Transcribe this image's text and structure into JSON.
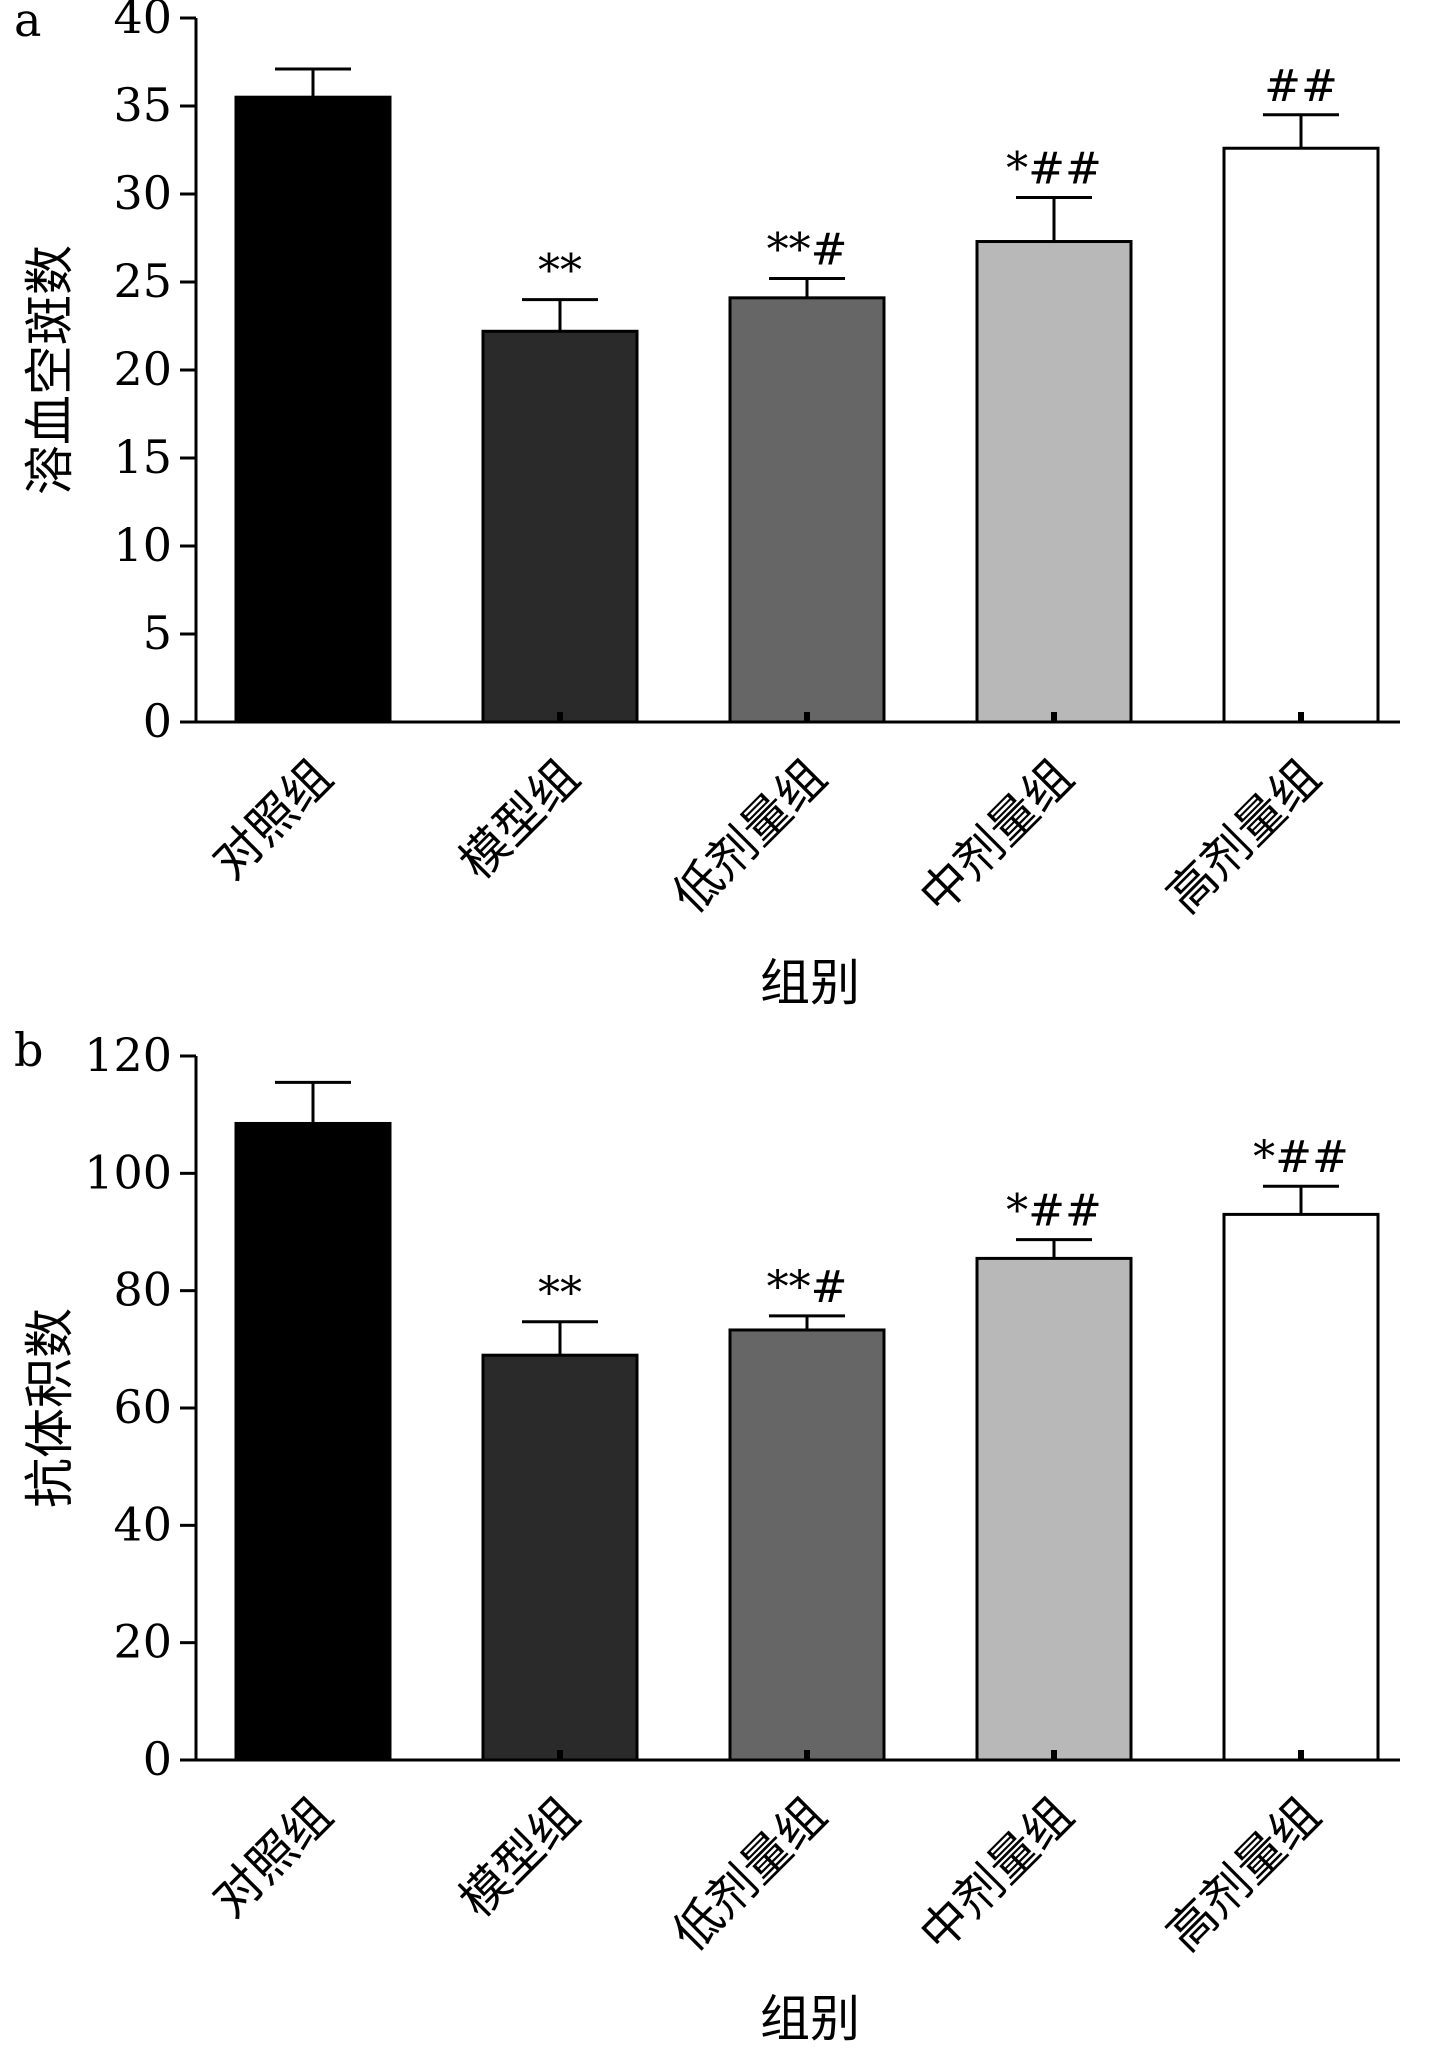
{
  "chart_data": [
    {
      "panel_label": "a",
      "type": "bar",
      "categories": [
        "对照组",
        "模型组",
        "低剂量组",
        "中剂量组",
        "高剂量组"
      ],
      "values": [
        35.5,
        22.2,
        24.1,
        27.3,
        32.6
      ],
      "error": [
        1.6,
        1.8,
        1.1,
        2.5,
        1.9
      ],
      "significance": [
        "",
        "**",
        "**#",
        "*##",
        "##"
      ],
      "bar_colors": [
        "#000000",
        "#2a2a2a",
        "#666666",
        "#b8b8b8",
        "#ffffff"
      ],
      "xlabel": "组别",
      "ylabel": "溶血空斑数",
      "ylim": [
        0,
        40
      ],
      "yticks": [
        0,
        5,
        10,
        15,
        20,
        25,
        30,
        35,
        40
      ],
      "grid": false,
      "legend": "none"
    },
    {
      "panel_label": "b",
      "type": "bar",
      "categories": [
        "对照组",
        "模型组",
        "低剂量组",
        "中剂量组",
        "高剂量组"
      ],
      "values": [
        108.5,
        69,
        73.3,
        85.5,
        93
      ],
      "error": [
        7,
        5.7,
        2.4,
        3.2,
        4.8
      ],
      "significance": [
        "",
        "**",
        "**#",
        "*##",
        "*##"
      ],
      "bar_colors": [
        "#000000",
        "#2a2a2a",
        "#666666",
        "#b8b8b8",
        "#ffffff"
      ],
      "xlabel": "组别",
      "ylabel": "抗体积数",
      "ylim": [
        0,
        120
      ],
      "yticks": [
        0,
        20,
        40,
        60,
        80,
        100,
        120
      ],
      "grid": false,
      "legend": "none"
    }
  ]
}
